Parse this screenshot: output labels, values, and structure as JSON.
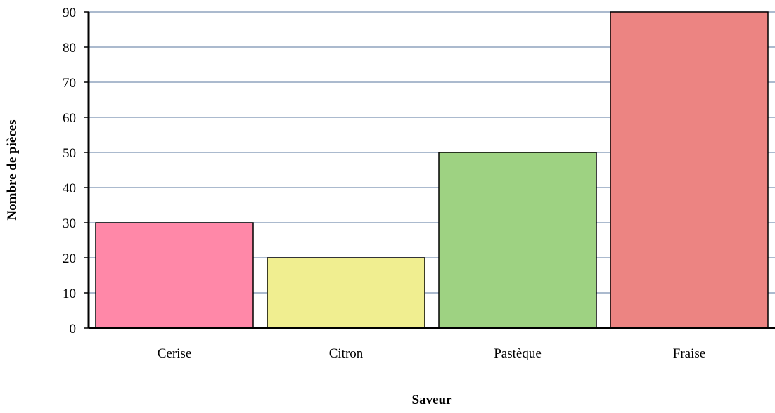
{
  "chart_data": {
    "type": "bar",
    "title": "",
    "xlabel": "Saveur",
    "ylabel": "Nombre de pièces",
    "categories": [
      "Cerise",
      "Citron",
      "Pastèque",
      "Fraise"
    ],
    "values": [
      30,
      20,
      50,
      90
    ],
    "ylim": [
      0,
      90
    ],
    "yticks": [
      "0",
      "10",
      "20",
      "30",
      "40",
      "50",
      "60",
      "70",
      "80",
      "90"
    ],
    "grid": true,
    "legend": "none",
    "colors": {
      "bars": [
        "#FF88A8",
        "#F0EE90",
        "#9ED282",
        "#EC8482"
      ],
      "gridline": "#8FA4BD",
      "axis": "#000000"
    }
  }
}
